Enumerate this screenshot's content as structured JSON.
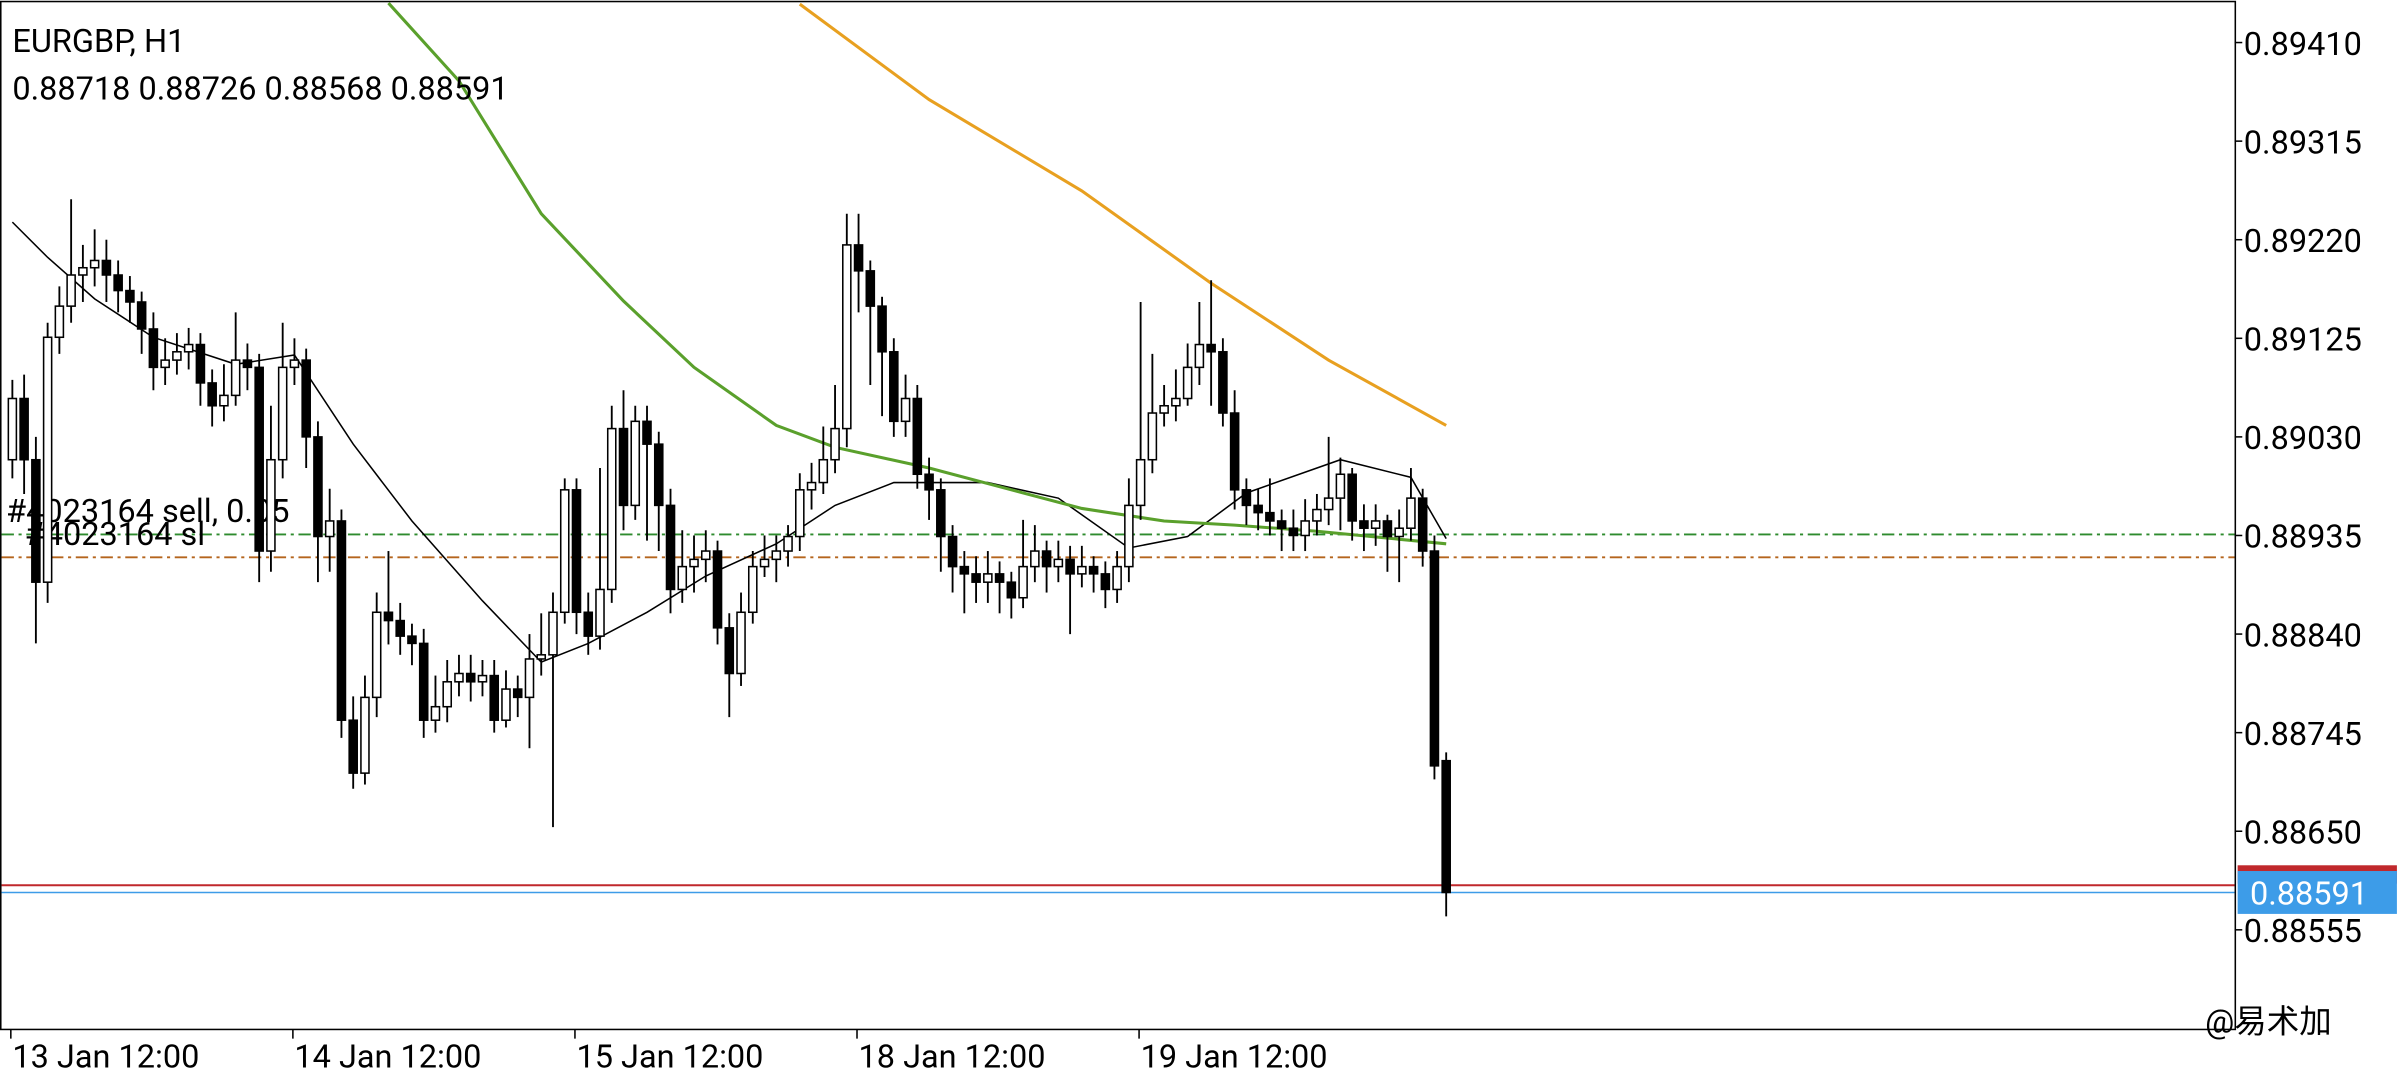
{
  "chart_data": {
    "type": "candlestick",
    "title": "EURGBP, H1",
    "categories": [
      "13 Jan 12:00",
      null,
      null,
      null,
      null,
      null,
      null,
      null,
      null,
      null,
      null,
      null,
      null,
      null,
      null,
      null,
      null,
      null,
      null,
      null,
      null,
      null,
      null,
      null,
      "14 Jan 12:00",
      null,
      null,
      null,
      null,
      null,
      null,
      null,
      null,
      null,
      null,
      null,
      null,
      null,
      null,
      null,
      null,
      null,
      null,
      null,
      null,
      null,
      null,
      null,
      "15 Jan 12:00",
      null,
      null,
      null,
      null,
      null,
      null,
      null,
      null,
      null,
      null,
      null,
      null,
      null,
      null,
      null,
      null,
      null,
      null,
      null,
      null,
      null,
      null,
      null,
      "18 Jan 12:00",
      null,
      null,
      null,
      null,
      null,
      null,
      null,
      null,
      null,
      null,
      null,
      null,
      null,
      null,
      null,
      null,
      null,
      null,
      null,
      null,
      null,
      null,
      null,
      "19 Jan 12:00",
      null,
      null,
      null,
      null,
      null,
      null,
      null,
      null,
      null,
      null,
      null,
      null,
      null,
      null,
      null,
      null,
      null,
      null,
      null,
      null,
      null,
      null,
      null,
      null,
      null,
      null
    ],
    "open": [
      0.89008,
      0.89067,
      0.89008,
      0.8889,
      0.89126,
      0.89156,
      0.89186,
      0.89193,
      0.892,
      0.89186,
      0.89171,
      0.8916,
      0.89134,
      0.89097,
      0.89104,
      0.89112,
      0.89119,
      0.89082,
      0.8906,
      0.8907,
      0.89104,
      0.89097,
      0.8892,
      0.89008,
      0.89097,
      0.89104,
      0.8903,
      0.88934,
      0.88949,
      0.88757,
      0.88706,
      0.88779,
      0.88861,
      0.88853,
      0.88838,
      0.88831,
      0.88757,
      0.8877,
      0.88794,
      0.88802,
      0.88794,
      0.888,
      0.88757,
      0.88787,
      0.88779,
      0.88816,
      0.8882,
      0.88861,
      0.88979,
      0.88861,
      0.88838,
      0.88883,
      0.89038,
      0.88964,
      0.89045,
      0.89023,
      0.88964,
      0.88883,
      0.88905,
      0.88912,
      0.8892,
      0.88846,
      0.88802,
      0.88861,
      0.88905,
      0.88912,
      0.8892,
      0.88934,
      0.88979,
      0.88986,
      0.89008,
      0.89038,
      0.89215,
      0.8919,
      0.89156,
      0.89112,
      0.89045,
      0.89067,
      0.88994,
      0.88979,
      0.88934,
      0.88905,
      0.88898,
      0.8889,
      0.88898,
      0.8889,
      0.88875,
      0.88905,
      0.8892,
      0.88905,
      0.88912,
      0.88898,
      0.88905,
      0.88898,
      0.88883,
      0.88905,
      0.88964,
      0.89008,
      0.89053,
      0.8906,
      0.89067,
      0.89097,
      0.89119,
      0.89112,
      0.89053,
      0.88979,
      0.88964,
      0.88957,
      0.88949,
      0.88942,
      0.88935,
      0.88949,
      0.8896,
      0.88971,
      0.88994,
      0.88949,
      0.88942,
      0.88949,
      0.88934,
      0.88942,
      0.88971,
      0.8892,
      0.88718
    ],
    "high": [
      0.89085,
      0.8909,
      0.8903,
      0.8914,
      0.89175,
      0.89259,
      0.89215,
      0.8923,
      0.8922,
      0.892,
      0.89185,
      0.8917,
      0.8915,
      0.89125,
      0.8913,
      0.89135,
      0.8913,
      0.89095,
      0.891,
      0.8915,
      0.8912,
      0.8911,
      0.8906,
      0.8914,
      0.89125,
      0.89115,
      0.89045,
      0.8898,
      0.8896,
      0.8878,
      0.888,
      0.8888,
      0.8892,
      0.8887,
      0.8885,
      0.88845,
      0.888,
      0.88815,
      0.8882,
      0.8882,
      0.88815,
      0.88815,
      0.88805,
      0.888,
      0.8884,
      0.8886,
      0.8888,
      0.8899,
      0.8899,
      0.8888,
      0.89,
      0.8906,
      0.89075,
      0.8906,
      0.8906,
      0.89035,
      0.8898,
      0.8894,
      0.88935,
      0.8894,
      0.8893,
      0.8886,
      0.8888,
      0.8892,
      0.88935,
      0.88935,
      0.88945,
      0.88995,
      0.89005,
      0.8904,
      0.8908,
      0.89245,
      0.89245,
      0.892,
      0.89165,
      0.89125,
      0.8909,
      0.8908,
      0.8901,
      0.8899,
      0.88945,
      0.8892,
      0.88915,
      0.8892,
      0.8891,
      0.889,
      0.8895,
      0.88945,
      0.8893,
      0.8893,
      0.88925,
      0.88925,
      0.88915,
      0.8891,
      0.8892,
      0.8899,
      0.8916,
      0.8911,
      0.8908,
      0.89095,
      0.8912,
      0.8916,
      0.89181,
      0.89125,
      0.89075,
      0.8899,
      0.8898,
      0.8899,
      0.8896,
      0.8896,
      0.8897,
      0.88975,
      0.8903,
      0.8901,
      0.89,
      0.88965,
      0.88965,
      0.88955,
      0.8896,
      0.89,
      0.8898,
      0.88935,
      0.88726
    ],
    "low": [
      0.8899,
      0.88975,
      0.88831,
      0.8887,
      0.8911,
      0.8914,
      0.8916,
      0.89175,
      0.8916,
      0.8915,
      0.8914,
      0.8911,
      0.89075,
      0.8908,
      0.8909,
      0.89095,
      0.8906,
      0.8904,
      0.89045,
      0.8906,
      0.89075,
      0.8889,
      0.889,
      0.8899,
      0.8908,
      0.89,
      0.8889,
      0.889,
      0.8874,
      0.88691,
      0.88695,
      0.8876,
      0.8883,
      0.8882,
      0.8881,
      0.8874,
      0.88745,
      0.88755,
      0.8878,
      0.88775,
      0.8878,
      0.88745,
      0.8875,
      0.8876,
      0.8873,
      0.888,
      0.88654,
      0.8885,
      0.8884,
      0.8882,
      0.88825,
      0.8887,
      0.8894,
      0.8895,
      0.8893,
      0.8892,
      0.8886,
      0.8887,
      0.8888,
      0.8889,
      0.8883,
      0.8876,
      0.8879,
      0.8885,
      0.88895,
      0.8889,
      0.88905,
      0.8892,
      0.8896,
      0.88975,
      0.88995,
      0.8902,
      0.8915,
      0.8908,
      0.8905,
      0.8903,
      0.8903,
      0.8898,
      0.8895,
      0.889,
      0.8888,
      0.8886,
      0.8887,
      0.8887,
      0.8886,
      0.88855,
      0.88865,
      0.8889,
      0.8888,
      0.8889,
      0.8884,
      0.88885,
      0.8888,
      0.88865,
      0.8887,
      0.8889,
      0.8895,
      0.88995,
      0.8904,
      0.89045,
      0.8906,
      0.8908,
      0.8906,
      0.8904,
      0.8896,
      0.88945,
      0.8894,
      0.88935,
      0.8892,
      0.8892,
      0.8892,
      0.88935,
      0.88945,
      0.8894,
      0.8893,
      0.8892,
      0.88925,
      0.889,
      0.8889,
      0.8893,
      0.88905,
      0.887,
      0.88568
    ],
    "close": [
      0.89067,
      0.89008,
      0.8889,
      0.89126,
      0.89156,
      0.89186,
      0.89193,
      0.892,
      0.89186,
      0.89171,
      0.8916,
      0.89134,
      0.89097,
      0.89104,
      0.89112,
      0.89119,
      0.89082,
      0.8906,
      0.8907,
      0.89104,
      0.89097,
      0.8892,
      0.89008,
      0.89097,
      0.89104,
      0.8903,
      0.88934,
      0.88949,
      0.88757,
      0.88706,
      0.88779,
      0.88861,
      0.88853,
      0.88838,
      0.88831,
      0.88757,
      0.8877,
      0.88794,
      0.88802,
      0.88794,
      0.888,
      0.88757,
      0.88787,
      0.88779,
      0.88816,
      0.8882,
      0.88861,
      0.88979,
      0.88861,
      0.88838,
      0.88883,
      0.89038,
      0.88964,
      0.89045,
      0.89023,
      0.88964,
      0.88883,
      0.88905,
      0.88912,
      0.8892,
      0.88846,
      0.88802,
      0.88861,
      0.88905,
      0.88912,
      0.8892,
      0.88934,
      0.88979,
      0.88986,
      0.89008,
      0.89038,
      0.89215,
      0.8919,
      0.89156,
      0.89112,
      0.89045,
      0.89067,
      0.88994,
      0.88979,
      0.88934,
      0.88905,
      0.88898,
      0.8889,
      0.88898,
      0.8889,
      0.88875,
      0.88905,
      0.8892,
      0.88905,
      0.88912,
      0.88898,
      0.88905,
      0.88898,
      0.88883,
      0.88905,
      0.88964,
      0.89008,
      0.89053,
      0.8906,
      0.89067,
      0.89097,
      0.89119,
      0.89112,
      0.89053,
      0.88979,
      0.88964,
      0.88957,
      0.88949,
      0.88942,
      0.88935,
      0.88949,
      0.8896,
      0.88971,
      0.88994,
      0.88949,
      0.88942,
      0.88949,
      0.88934,
      0.88942,
      0.88971,
      0.8892,
      0.88713,
      0.88591
    ],
    "moving_averages": [
      {
        "color": "#000000",
        "x": [
          0,
          3,
          7,
          12,
          19,
          24,
          29,
          34,
          40,
          45,
          49,
          54,
          59,
          65,
          70,
          75,
          83,
          89,
          95,
          100,
          105,
          113,
          119,
          122
        ],
        "values": [
          0.89237,
          0.89203,
          0.89163,
          0.89126,
          0.891,
          0.89109,
          0.89023,
          0.88949,
          0.88872,
          0.88813,
          0.88831,
          0.88861,
          0.88896,
          0.88927,
          0.88964,
          0.88986,
          0.88986,
          0.88971,
          0.88923,
          0.88934,
          0.88976,
          0.89008,
          0.88991,
          0.88932
        ]
      },
      {
        "color": "#5aa02c",
        "x": [
          32,
          38,
          45,
          52,
          58,
          65,
          70,
          78,
          84,
          91,
          98,
          104,
          111,
          122
        ],
        "values": [
          0.89448,
          0.89373,
          0.89245,
          0.89161,
          0.89097,
          0.89041,
          0.8902,
          0.89,
          0.88982,
          0.88961,
          0.88949,
          0.88945,
          0.88939,
          0.88927
        ]
      },
      {
        "color": "#e8a020",
        "x": [
          67,
          78,
          91,
          102,
          112,
          122
        ],
        "values": [
          0.89447,
          0.89355,
          0.89267,
          0.89178,
          0.89104,
          0.89041
        ]
      }
    ],
    "order_lines": [
      {
        "label": "#4023164 sell, 0.05",
        "value": 0.88914,
        "color": "#b5651d"
      },
      {
        "label": "#4023164 sl",
        "value": 0.88936,
        "color": "#2e8b2e"
      }
    ],
    "ask_line": {
      "value": 0.88598,
      "color": "#c0282c"
    },
    "bid_line": {
      "value": 0.88591,
      "color": "#3d9ce8"
    },
    "ylim": [
      0.88459,
      0.89451
    ],
    "yticks": [
      {
        "value": 0.8941,
        "label": "0.89410"
      },
      0.89315,
      {
        "value": 0.8922,
        "label": "0.89220"
      },
      0.89125,
      {
        "value": 0.8903,
        "label": "0.89030"
      },
      0.88935,
      {
        "value": 0.8884,
        "label": "0.88840"
      },
      0.88745,
      {
        "value": 0.8865,
        "label": "0.88650"
      },
      0.88555
    ],
    "watermark": "@易术加"
  }
}
